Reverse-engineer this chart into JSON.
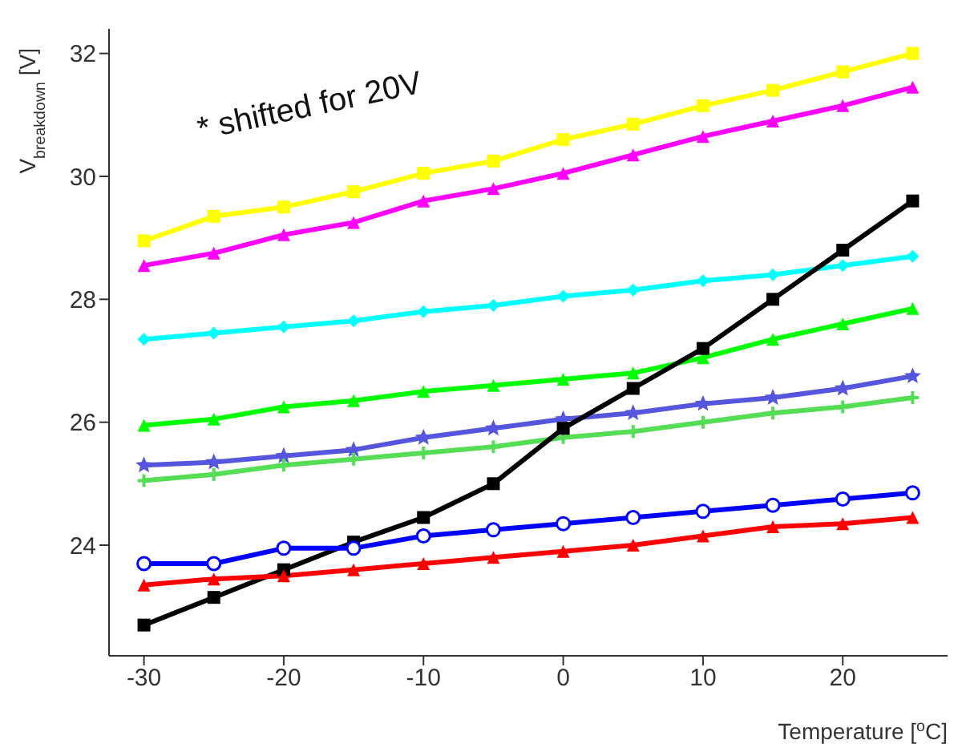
{
  "chart_data": {
    "type": "line",
    "xlabel": "Temperature [$^{o}$C]",
    "ylabel": "V$_{breakdown}$ [V]",
    "annotations": [
      "* shifted for 20V"
    ],
    "x": [
      -30,
      -25,
      -20,
      -15,
      -10,
      -5,
      0,
      5,
      10,
      15,
      20,
      25
    ],
    "xlim": [
      -32.5,
      27.5
    ],
    "xticks": [
      -30,
      -20,
      -10,
      0,
      10,
      20
    ],
    "ylim": [
      22.2,
      32.4
    ],
    "yticks": [
      24,
      26,
      28,
      30,
      32
    ],
    "grid": false,
    "legend": false,
    "series": [
      {
        "color": "#ffff00",
        "marker": "square",
        "values": [
          28.95,
          29.35,
          29.5,
          29.75,
          30.05,
          30.25,
          30.6,
          30.85,
          31.15,
          31.4,
          31.7,
          32.0
        ]
      },
      {
        "color": "#ff00ff",
        "marker": "triangle",
        "values": [
          28.55,
          28.75,
          29.05,
          29.25,
          29.6,
          29.8,
          30.05,
          30.35,
          30.65,
          30.9,
          31.15,
          31.45
        ]
      },
      {
        "color": "#00ffff",
        "marker": "diamond",
        "values": [
          27.35,
          27.45,
          27.55,
          27.65,
          27.8,
          27.9,
          28.05,
          28.15,
          28.3,
          28.4,
          28.55,
          28.7
        ]
      },
      {
        "color": "#00ff00",
        "marker": "triangle",
        "values": [
          25.95,
          26.05,
          26.25,
          26.35,
          26.5,
          26.6,
          26.7,
          26.8,
          27.05,
          27.35,
          27.6,
          27.85
        ]
      },
      {
        "color": "#5555dd",
        "marker": "star",
        "values": [
          25.3,
          25.35,
          25.45,
          25.55,
          25.75,
          25.9,
          26.05,
          26.15,
          26.3,
          26.4,
          26.55,
          26.75
        ]
      },
      {
        "color": "#55dd55",
        "marker": "cross",
        "values": [
          25.05,
          25.15,
          25.3,
          25.4,
          25.5,
          25.6,
          25.75,
          25.85,
          26.0,
          26.15,
          26.25,
          26.4
        ]
      },
      {
        "color": "#000000",
        "marker": "square",
        "values": [
          22.7,
          23.15,
          23.6,
          24.05,
          24.45,
          25.0,
          25.9,
          26.55,
          27.2,
          28.0,
          28.8,
          29.6
        ]
      },
      {
        "color": "#0000ff",
        "marker": "circle",
        "values": [
          23.7,
          23.7,
          23.95,
          23.95,
          24.15,
          24.25,
          24.35,
          24.45,
          24.55,
          24.65,
          24.75,
          24.85
        ]
      },
      {
        "color": "#ff0000",
        "marker": "triangle",
        "values": [
          23.35,
          23.45,
          23.5,
          23.6,
          23.7,
          23.8,
          23.9,
          24.0,
          24.15,
          24.3,
          24.35,
          24.45
        ]
      }
    ]
  }
}
